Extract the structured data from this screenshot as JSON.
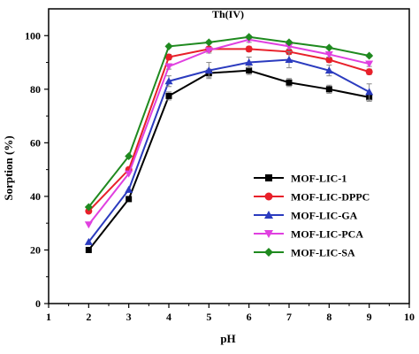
{
  "chart_data": {
    "type": "line",
    "title": "Th(IV)",
    "xlabel": "pH",
    "ylabel": "Sorption (%)",
    "xlim": [
      1,
      10
    ],
    "ylim": [
      0,
      110
    ],
    "x_ticks": [
      1,
      2,
      3,
      4,
      5,
      6,
      7,
      8,
      9,
      10
    ],
    "y_ticks": [
      0,
      20,
      40,
      60,
      80,
      100
    ],
    "grid": false,
    "legend_position": "center-right",
    "x": [
      2,
      3,
      4,
      5,
      6,
      7,
      8,
      9
    ],
    "series": [
      {
        "name": "MOF-LIC-1",
        "color": "#000000",
        "marker": "square",
        "values": [
          20,
          39,
          77.5,
          86,
          87,
          82.5,
          80,
          77
        ],
        "errors": [
          0,
          0,
          1.5,
          1.5,
          1.5,
          1.5,
          1.5,
          1.5
        ]
      },
      {
        "name": "MOF-LIC-DPPC",
        "color": "#e8202a",
        "marker": "circle",
        "values": [
          34.5,
          50,
          92,
          95,
          95,
          94,
          91,
          86.5
        ],
        "errors": [
          0,
          0,
          1,
          1,
          1,
          1,
          1,
          1
        ]
      },
      {
        "name": "MOF-LIC-GA",
        "color": "#2b3bbf",
        "marker": "triangle-up",
        "values": [
          23,
          42.5,
          83,
          87,
          90,
          91,
          87,
          79
        ],
        "errors": [
          0,
          0,
          2,
          3,
          2,
          3,
          2,
          3
        ]
      },
      {
        "name": "MOF-LIC-PCA",
        "color": "#e040e0",
        "marker": "triangle-down",
        "values": [
          29.5,
          48.5,
          88.5,
          94.5,
          98.5,
          96,
          93,
          89.5
        ],
        "errors": [
          0,
          0,
          1,
          1,
          1,
          1,
          1,
          1
        ]
      },
      {
        "name": "MOF-LIC-SA",
        "color": "#1f8a1f",
        "marker": "diamond",
        "values": [
          36,
          55,
          96,
          97.5,
          99.5,
          97.5,
          95.5,
          92.5
        ],
        "errors": [
          0,
          0,
          0.5,
          0.5,
          0.5,
          0.5,
          0.5,
          0.5
        ]
      }
    ]
  }
}
